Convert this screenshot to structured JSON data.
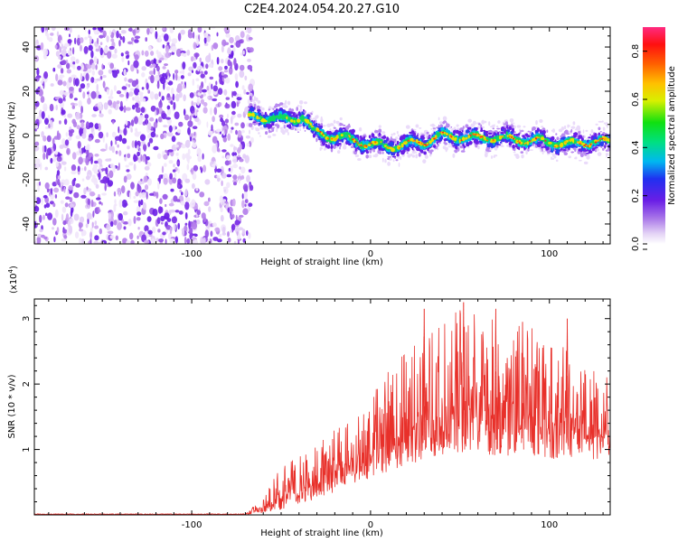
{
  "title": "C2E4.2024.054.20.27.G10",
  "chart_data": [
    {
      "type": "heatmap",
      "xlabel": "Height of straight line (km)",
      "ylabel": "Frequency (Hz)",
      "xlim": [
        -188,
        134
      ],
      "ylim": [
        -49,
        49
      ],
      "xticks": [
        -100,
        0,
        100
      ],
      "yticks": [
        -40,
        -20,
        0,
        20,
        40
      ],
      "noise_region_x": [
        -188,
        -66
      ],
      "signal_region_x": [
        -68,
        134
      ],
      "signal_center_trace": {
        "x": [
          -66,
          -55,
          -45,
          -38,
          -32,
          -25,
          -15,
          -5,
          0,
          10,
          20,
          30,
          40,
          55,
          70,
          85,
          100,
          110,
          120,
          134
        ],
        "y": [
          8,
          8,
          7,
          9,
          2,
          0,
          -1,
          -3,
          -4,
          -5,
          -4,
          -3,
          0,
          -1,
          -1,
          -2,
          -3,
          -4,
          -3,
          -3
        ]
      },
      "colorbar": {
        "label": "Normalized spectral amplitude",
        "range": [
          0,
          0.9
        ],
        "ticks": [
          0.0,
          0.2,
          0.4,
          0.6,
          0.8
        ],
        "tick_labels": [
          "0.0",
          "0.2",
          "0.4",
          "0.6",
          "0.8"
        ]
      }
    },
    {
      "type": "line",
      "xlabel": "Height of straight line (km)",
      "ylabel": "SNR (10 * v/v)",
      "multiplier": "(x10",
      "multiplier_exp": "4",
      "xlim": [
        -188,
        134
      ],
      "ylim": [
        0,
        3.3
      ],
      "xticks": [
        -100,
        0,
        100
      ],
      "yticks": [
        1,
        2,
        3
      ],
      "series": [
        {
          "color": "#e8302a",
          "envelope": {
            "x": [
              -188,
              -70,
              -60,
              -50,
              -40,
              -30,
              -20,
              -10,
              0,
              10,
              20,
              30,
              40,
              50,
              60,
              70,
              80,
              90,
              100,
              110,
              120,
              134
            ],
            "lo": [
              0.0,
              0.0,
              0.03,
              0.08,
              0.15,
              0.25,
              0.35,
              0.45,
              0.55,
              0.65,
              0.75,
              0.85,
              0.9,
              0.95,
              0.95,
              0.9,
              0.9,
              0.85,
              0.85,
              0.85,
              0.85,
              0.85
            ],
            "hi": [
              0.02,
              0.02,
              0.25,
              0.75,
              1.0,
              1.1,
              1.35,
              1.5,
              1.85,
              2.2,
              2.5,
              2.8,
              2.95,
              3.2,
              3.05,
              3.1,
              2.9,
              2.9,
              2.6,
              2.6,
              2.3,
              2.1
            ]
          },
          "peaks": [
            {
              "x": 52,
              "y": 3.25
            },
            {
              "x": 70,
              "y": 3.15
            },
            {
              "x": 30,
              "y": 3.15
            },
            {
              "x": 85,
              "y": 2.95
            },
            {
              "x": 110,
              "y": 3.0
            }
          ]
        }
      ]
    }
  ]
}
